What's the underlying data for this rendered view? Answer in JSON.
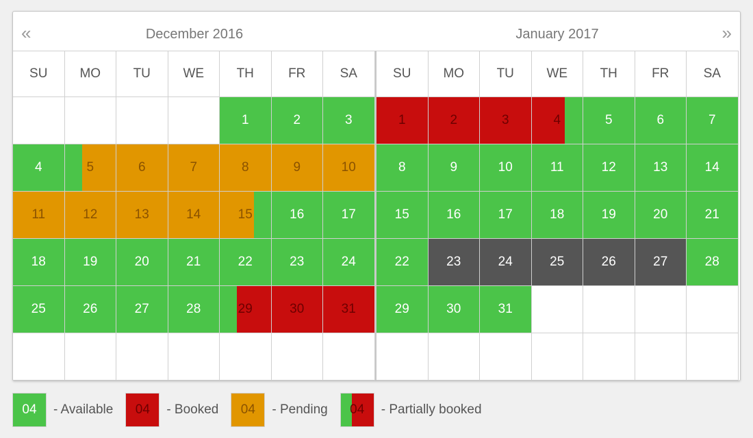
{
  "calendar": {
    "prev_icon": "«",
    "next_icon": "»",
    "months": [
      {
        "title": "December 2016",
        "weekdays": [
          "SU",
          "MO",
          "TU",
          "WE",
          "TH",
          "FR",
          "SA"
        ],
        "days": [
          {
            "d": "",
            "s": "empty"
          },
          {
            "d": "",
            "s": "empty"
          },
          {
            "d": "",
            "s": "empty"
          },
          {
            "d": "",
            "s": "empty"
          },
          {
            "d": "1",
            "s": "avail"
          },
          {
            "d": "2",
            "s": "avail"
          },
          {
            "d": "3",
            "s": "avail"
          },
          {
            "d": "4",
            "s": "avail"
          },
          {
            "d": "5",
            "s": "partial-avail-pend"
          },
          {
            "d": "6",
            "s": "pending"
          },
          {
            "d": "7",
            "s": "pending"
          },
          {
            "d": "8",
            "s": "pending"
          },
          {
            "d": "9",
            "s": "pending"
          },
          {
            "d": "10",
            "s": "pending"
          },
          {
            "d": "11",
            "s": "pending"
          },
          {
            "d": "12",
            "s": "pending"
          },
          {
            "d": "13",
            "s": "pending"
          },
          {
            "d": "14",
            "s": "pending"
          },
          {
            "d": "15",
            "s": "partial-pend-avail"
          },
          {
            "d": "16",
            "s": "avail"
          },
          {
            "d": "17",
            "s": "avail"
          },
          {
            "d": "18",
            "s": "avail"
          },
          {
            "d": "19",
            "s": "avail"
          },
          {
            "d": "20",
            "s": "avail"
          },
          {
            "d": "21",
            "s": "avail"
          },
          {
            "d": "22",
            "s": "avail"
          },
          {
            "d": "23",
            "s": "avail"
          },
          {
            "d": "24",
            "s": "avail"
          },
          {
            "d": "25",
            "s": "avail"
          },
          {
            "d": "26",
            "s": "avail"
          },
          {
            "d": "27",
            "s": "avail"
          },
          {
            "d": "28",
            "s": "avail"
          },
          {
            "d": "29",
            "s": "partial-avail-book"
          },
          {
            "d": "30",
            "s": "booked"
          },
          {
            "d": "31",
            "s": "booked"
          },
          {
            "d": "",
            "s": "empty"
          },
          {
            "d": "",
            "s": "empty"
          },
          {
            "d": "",
            "s": "empty"
          },
          {
            "d": "",
            "s": "empty"
          },
          {
            "d": "",
            "s": "empty"
          },
          {
            "d": "",
            "s": "empty"
          },
          {
            "d": "",
            "s": "empty"
          }
        ]
      },
      {
        "title": "January 2017",
        "weekdays": [
          "SU",
          "MO",
          "TU",
          "WE",
          "TH",
          "FR",
          "SA"
        ],
        "days": [
          {
            "d": "1",
            "s": "booked"
          },
          {
            "d": "2",
            "s": "booked"
          },
          {
            "d": "3",
            "s": "booked"
          },
          {
            "d": "4",
            "s": "partial-book-avail"
          },
          {
            "d": "5",
            "s": "avail"
          },
          {
            "d": "6",
            "s": "avail"
          },
          {
            "d": "7",
            "s": "avail"
          },
          {
            "d": "8",
            "s": "avail"
          },
          {
            "d": "9",
            "s": "avail"
          },
          {
            "d": "10",
            "s": "avail"
          },
          {
            "d": "11",
            "s": "avail"
          },
          {
            "d": "12",
            "s": "avail"
          },
          {
            "d": "13",
            "s": "avail"
          },
          {
            "d": "14",
            "s": "avail"
          },
          {
            "d": "15",
            "s": "avail"
          },
          {
            "d": "16",
            "s": "avail"
          },
          {
            "d": "17",
            "s": "avail"
          },
          {
            "d": "18",
            "s": "avail"
          },
          {
            "d": "19",
            "s": "avail"
          },
          {
            "d": "20",
            "s": "avail"
          },
          {
            "d": "21",
            "s": "avail"
          },
          {
            "d": "22",
            "s": "avail"
          },
          {
            "d": "23",
            "s": "blocked"
          },
          {
            "d": "24",
            "s": "blocked"
          },
          {
            "d": "25",
            "s": "blocked"
          },
          {
            "d": "26",
            "s": "blocked"
          },
          {
            "d": "27",
            "s": "blocked"
          },
          {
            "d": "28",
            "s": "avail"
          },
          {
            "d": "29",
            "s": "avail"
          },
          {
            "d": "30",
            "s": "avail"
          },
          {
            "d": "31",
            "s": "avail"
          },
          {
            "d": "",
            "s": "empty"
          },
          {
            "d": "",
            "s": "empty"
          },
          {
            "d": "",
            "s": "empty"
          },
          {
            "d": "",
            "s": "empty"
          },
          {
            "d": "",
            "s": "empty"
          },
          {
            "d": "",
            "s": "empty"
          },
          {
            "d": "",
            "s": "empty"
          },
          {
            "d": "",
            "s": "empty"
          },
          {
            "d": "",
            "s": "empty"
          },
          {
            "d": "",
            "s": "empty"
          },
          {
            "d": "",
            "s": "empty"
          }
        ]
      }
    ]
  },
  "legend": [
    {
      "swatch_text": "04",
      "label": "- Available",
      "type": "avail"
    },
    {
      "swatch_text": "04",
      "label": "- Booked",
      "type": "booked"
    },
    {
      "swatch_text": "04",
      "label": "- Pending",
      "type": "pending"
    },
    {
      "swatch_text": "04",
      "label": "- Partially booked",
      "type": "partial"
    }
  ],
  "colors": {
    "available": "#4bc449",
    "booked": "#c80d0d",
    "pending": "#e19600",
    "unavailable": "#555555"
  }
}
